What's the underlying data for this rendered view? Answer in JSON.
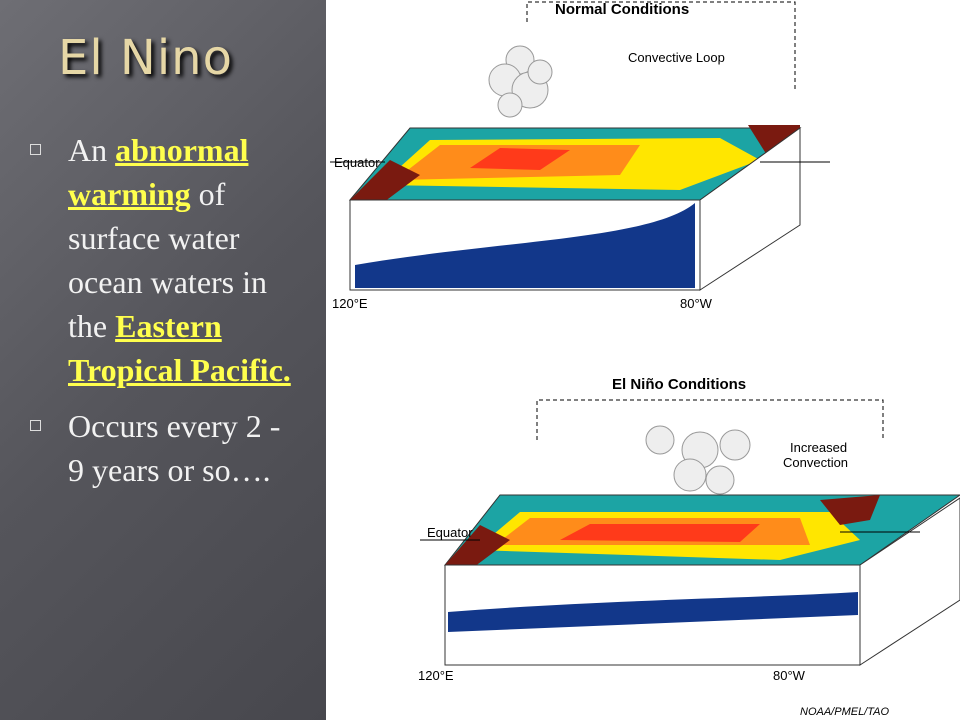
{
  "title": "El Nino",
  "bullets": [
    [
      "An ",
      "abnormal warming",
      " of surface water ocean waters in the ",
      "Eastern Tropical Pacific."
    ],
    [
      "Occurs every 2 - 9 years or so…."
    ]
  ],
  "figure": {
    "normal": {
      "title": "Normal Conditions",
      "loop_label": "Convective Loop",
      "equator": "Equator",
      "west": "120°E",
      "east": "80°W"
    },
    "el_nino": {
      "title": "El Niño Conditions",
      "loop_label": [
        "Increased",
        "Convection"
      ],
      "equator": "Equator",
      "west": "120°E",
      "east": "80°W"
    },
    "credit": "NOAA/PMEL/TAO"
  }
}
